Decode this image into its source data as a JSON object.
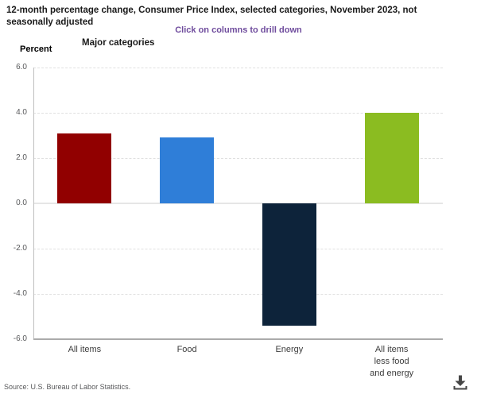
{
  "header": {
    "title": "12-month percentage change, Consumer Price Index, selected categories, November 2023, not seasonally adjusted",
    "drilldown_hint": "Click on columns to drill down",
    "hint_color": "#6f4c9d",
    "y_axis_label": "Percent",
    "x_axis_label": "Major categories"
  },
  "chart_data": {
    "type": "bar",
    "title": "12-month percentage change, Consumer Price Index, selected categories, November 2023, not seasonally adjusted",
    "xlabel": "Major categories",
    "ylabel": "Percent",
    "categories": [
      "All items",
      "Food",
      "Energy",
      "All items less food and energy"
    ],
    "categories_display": [
      [
        "All items"
      ],
      [
        "Food"
      ],
      [
        "Energy"
      ],
      [
        "All items",
        "less food",
        "and energy"
      ]
    ],
    "values": [
      3.1,
      2.9,
      -5.4,
      4.0
    ],
    "bar_colors": [
      "#910000",
      "#2f7ed8",
      "#0d233a",
      "#8bbc21"
    ],
    "ylim": [
      -6.0,
      6.0
    ],
    "yticks": [
      6,
      4,
      2,
      0,
      -2,
      -4,
      -6
    ],
    "ytick_labels": [
      "6.0",
      "4.0",
      "2.0",
      "0.0",
      "-2.0",
      "-4.0",
      "-6.0"
    ],
    "grid": true,
    "legend": "none"
  },
  "footer": {
    "source": "Source: U.S. Bureau of Labor Statistics.",
    "download_icon": "download-icon"
  }
}
